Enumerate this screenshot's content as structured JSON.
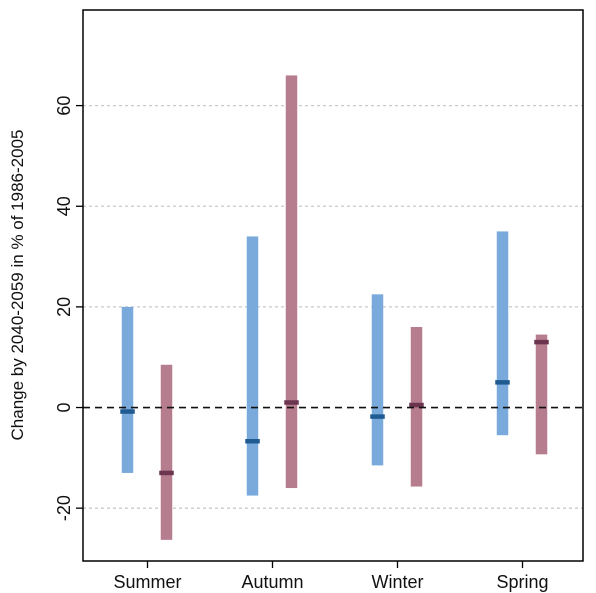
{
  "chart_data": {
    "type": "range",
    "title": "",
    "xlabel": "",
    "ylabel": "Change by 2040-2059 in % of 1986-2005",
    "categories": [
      "Summer",
      "Autumn",
      "Winter",
      "Spring"
    ],
    "ylim": [
      -30.5,
      79
    ],
    "yticks": [
      -20,
      0,
      20,
      40,
      60
    ],
    "ytick_labels": [
      "-20",
      "0",
      "20",
      "40",
      "60"
    ],
    "grid": true,
    "reference_line": 0,
    "series": [
      {
        "color": "#7aaadc",
        "median_color": "#1f5a91",
        "low": [
          -13,
          -17.5,
          -11.5,
          -5.5
        ],
        "high": [
          20,
          34,
          22.5,
          35
        ],
        "median": [
          -0.8,
          -6.7,
          -1.8,
          5
        ]
      },
      {
        "color": "#b67d8f",
        "median_color": "#6b3550",
        "low": [
          -26.3,
          -16,
          -15.7,
          -9.3
        ],
        "high": [
          8.5,
          66,
          16,
          14.5
        ],
        "median": [
          -13,
          1,
          0.5,
          13
        ]
      }
    ]
  }
}
